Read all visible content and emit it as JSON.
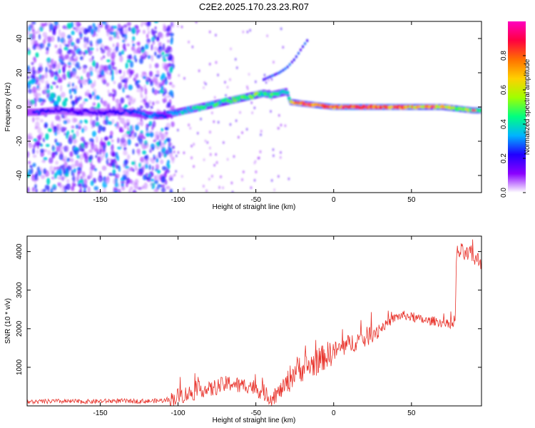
{
  "title": "C2E2.2025.170.23.23.R07",
  "chart_data": [
    {
      "type": "heatmap",
      "xlabel": "Height of straight line (km)",
      "ylabel": "Frequency (Hz)",
      "xlim": [
        -197,
        95
      ],
      "ylim": [
        -50,
        50
      ],
      "xticks": [
        -150,
        -100,
        -50,
        0,
        50
      ],
      "yticks": [
        -40,
        -20,
        0,
        20,
        40
      ],
      "colorbar": {
        "label": "Normalized spectral amplitude",
        "range": [
          0.0,
          1.0
        ],
        "ticks": [
          0.0,
          0.2,
          0.4,
          0.6,
          0.8
        ],
        "colormap": [
          "#ffffff",
          "#8a00ff",
          "#2000ff",
          "#00b4ff",
          "#00ff80",
          "#a0ff00",
          "#ffd000",
          "#ff7000",
          "#ff0040",
          "#ff00c0"
        ]
      },
      "ridge": {
        "x": [
          -190,
          -180,
          -165,
          -150,
          -135,
          -125,
          -115,
          -110,
          -100,
          -95,
          -85,
          -75,
          -65,
          -55,
          -50,
          -45,
          -40,
          -35,
          -30,
          -28,
          -20,
          -10,
          0,
          10,
          20,
          30,
          40,
          50,
          60,
          70,
          80,
          90,
          95
        ],
        "y": [
          -3,
          -2,
          -3,
          -3,
          -3,
          -4,
          -5,
          -5,
          -3,
          -2,
          0,
          2,
          4,
          6,
          7,
          8,
          7,
          8,
          9,
          3,
          2,
          1,
          0,
          0,
          0,
          0,
          0,
          0,
          0,
          0,
          -1,
          -2,
          -2
        ],
        "amplitude": [
          0.25,
          0.2,
          0.2,
          0.2,
          0.22,
          0.3,
          0.32,
          0.3,
          0.35,
          0.4,
          0.45,
          0.45,
          0.5,
          0.55,
          0.55,
          0.45,
          0.5,
          0.45,
          0.4,
          0.6,
          0.7,
          0.75,
          0.8,
          0.85,
          0.8,
          0.8,
          0.8,
          0.75,
          0.7,
          0.7,
          0.6,
          0.55,
          0.5
        ]
      },
      "upper_branch": {
        "x": [
          -45,
          -40,
          -35,
          -30,
          -25,
          -20,
          -16
        ],
        "y": [
          16,
          18,
          20,
          23,
          28,
          35,
          40
        ]
      }
    },
    {
      "type": "line",
      "xlabel": "Height of straight line (km)",
      "ylabel": "SNR (10 * v/v)",
      "xlim": [
        -197,
        95
      ],
      "ylim": [
        0,
        4400
      ],
      "xticks": [
        -150,
        -100,
        -50,
        0,
        50
      ],
      "yticks": [
        1000,
        2000,
        3000,
        4000
      ],
      "color": "#e8322a",
      "x": [
        -197,
        -180,
        -160,
        -140,
        -120,
        -105,
        -100,
        -95,
        -90,
        -85,
        -80,
        -75,
        -70,
        -65,
        -60,
        -55,
        -50,
        -45,
        -40,
        -35,
        -30,
        -25,
        -22,
        -20,
        -15,
        -10,
        -5,
        0,
        5,
        10,
        15,
        20,
        25,
        30,
        35,
        40,
        45,
        50,
        55,
        60,
        65,
        70,
        75,
        78,
        79,
        82,
        85,
        88,
        91,
        95
      ],
      "y": [
        100,
        120,
        110,
        130,
        120,
        150,
        250,
        300,
        350,
        450,
        400,
        500,
        550,
        600,
        500,
        550,
        450,
        350,
        200,
        350,
        600,
        900,
        1000,
        950,
        1050,
        1150,
        1300,
        1400,
        1500,
        1600,
        1700,
        1750,
        1900,
        2000,
        2150,
        2300,
        2350,
        2300,
        2250,
        2200,
        2200,
        2150,
        2100,
        2100,
        3950,
        4000,
        3900,
        3950,
        3800,
        3750
      ]
    }
  ]
}
